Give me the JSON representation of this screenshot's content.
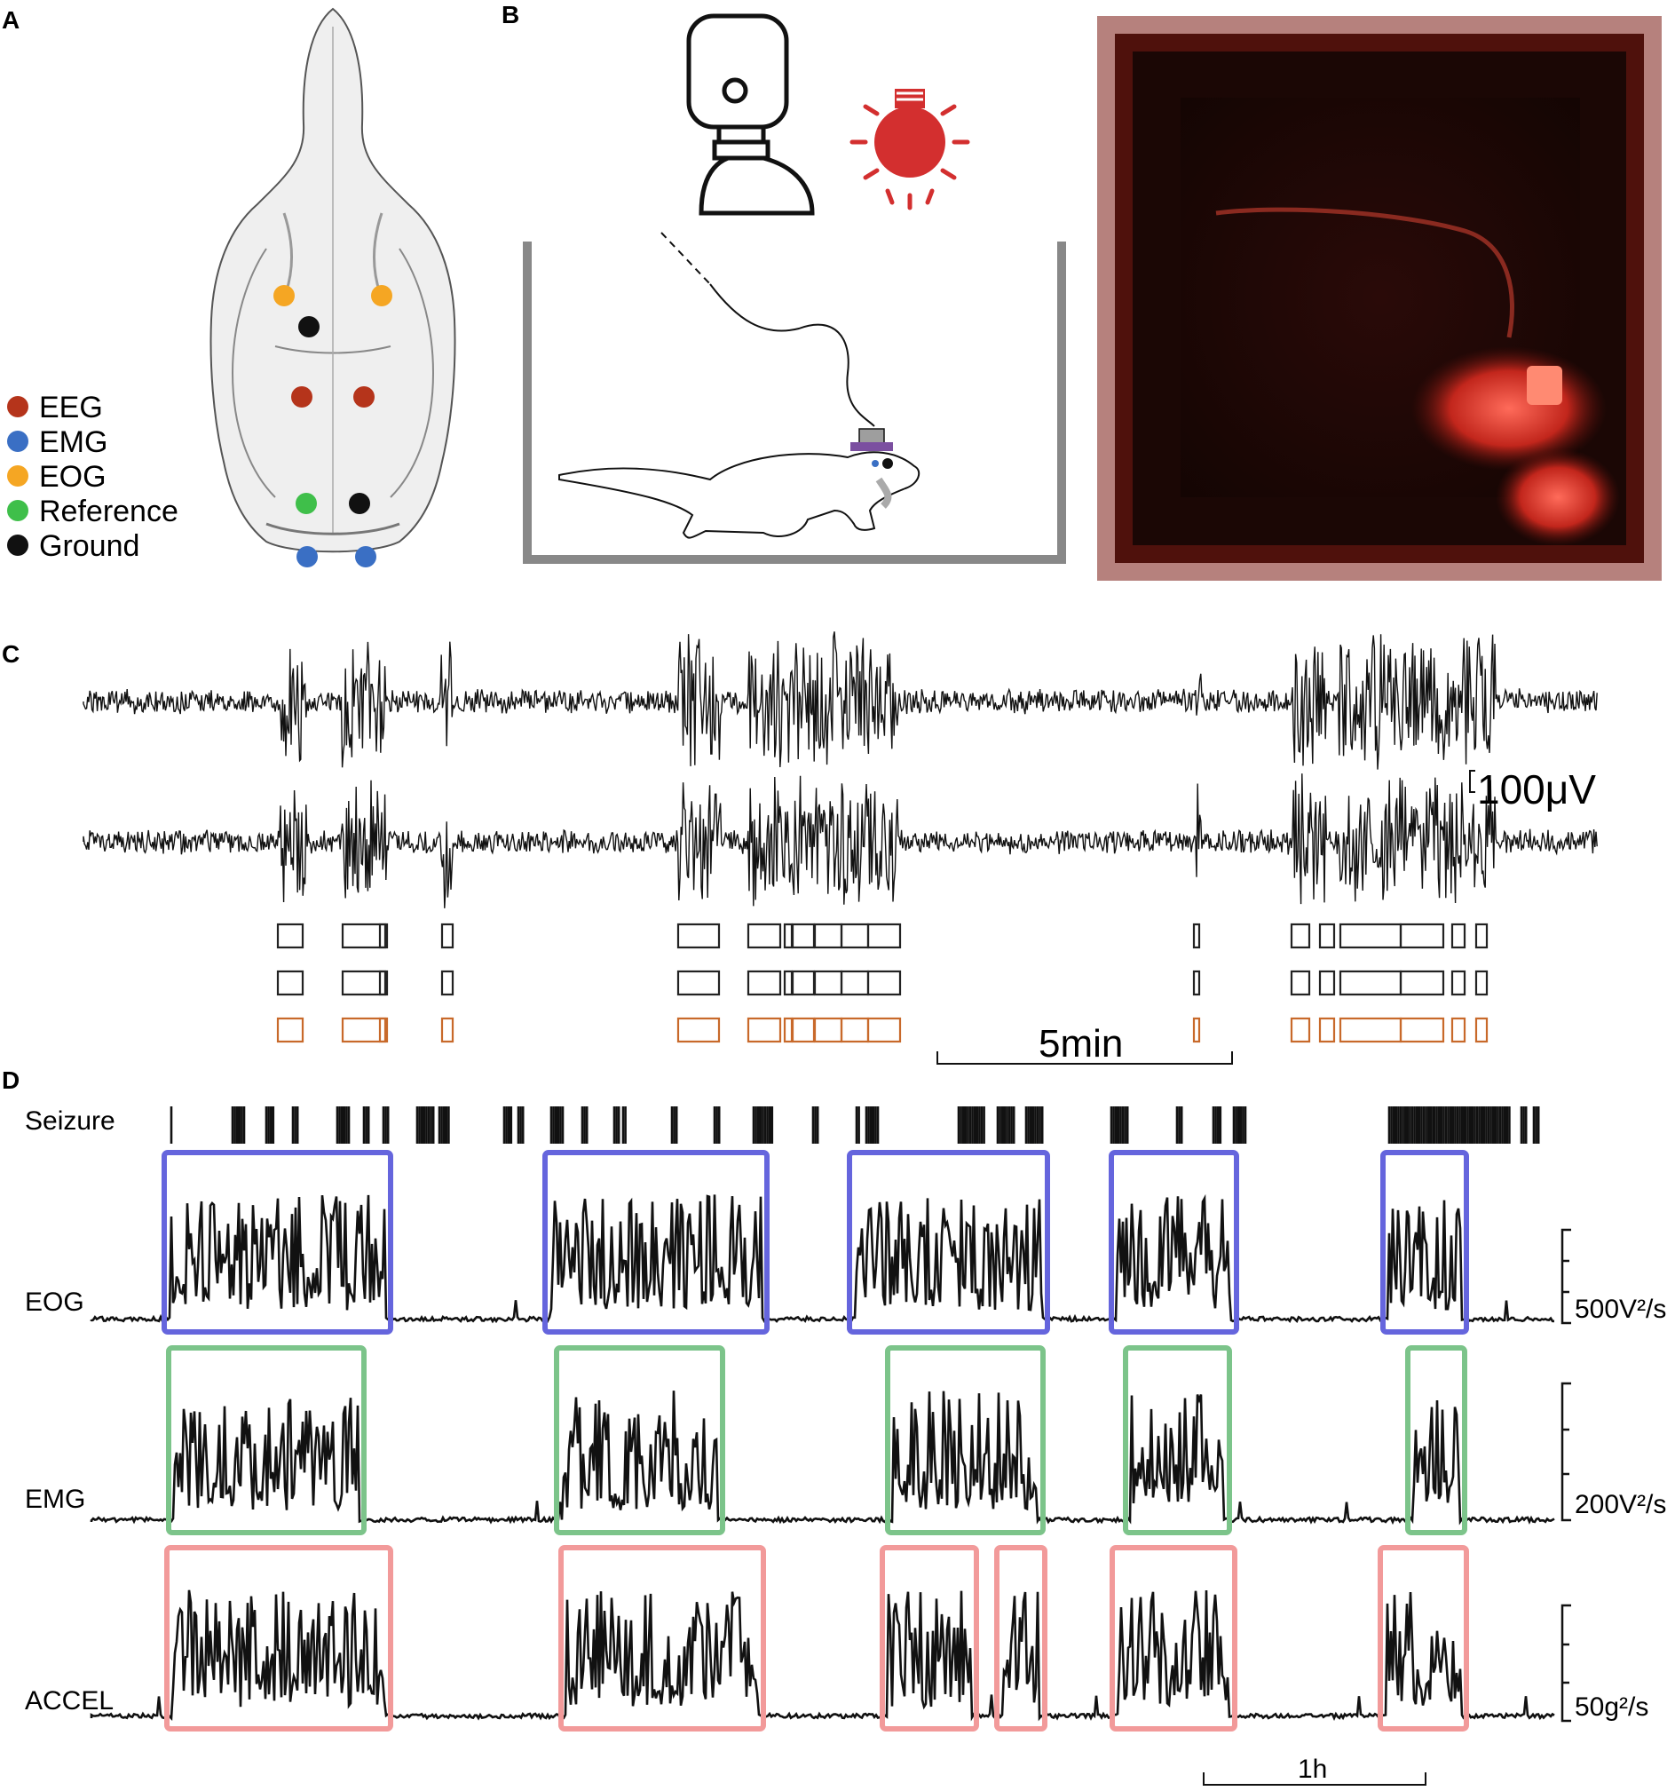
{
  "panels": {
    "A": "A",
    "B": "B",
    "C": "C",
    "D": "D"
  },
  "legend": [
    {
      "label": "EEG",
      "color": "#b5341b"
    },
    {
      "label": "EMG",
      "color": "#3a6fc4"
    },
    {
      "label": "EOG",
      "color": "#f5a623"
    },
    {
      "label": "Reference",
      "color": "#3fbf4a"
    },
    {
      "label": "Ground",
      "color": "#111111"
    }
  ],
  "panel_c": {
    "scale_voltage": "100μV",
    "scale_time": "5min",
    "box_rows": [
      {
        "color": "#222222"
      },
      {
        "color": "#222222"
      },
      {
        "color": "#c8692a"
      }
    ]
  },
  "panel_d": {
    "rows": [
      "Seizure",
      "EOG",
      "EMG",
      "ACCEL"
    ],
    "scales": [
      "500V²/s",
      "200V²/s",
      "50g²/s"
    ],
    "scale_time": "1h",
    "box_colors": {
      "EOG": "#6565dd",
      "EMG": "#7cc48a",
      "ACCEL": "#f29a9a"
    }
  }
}
